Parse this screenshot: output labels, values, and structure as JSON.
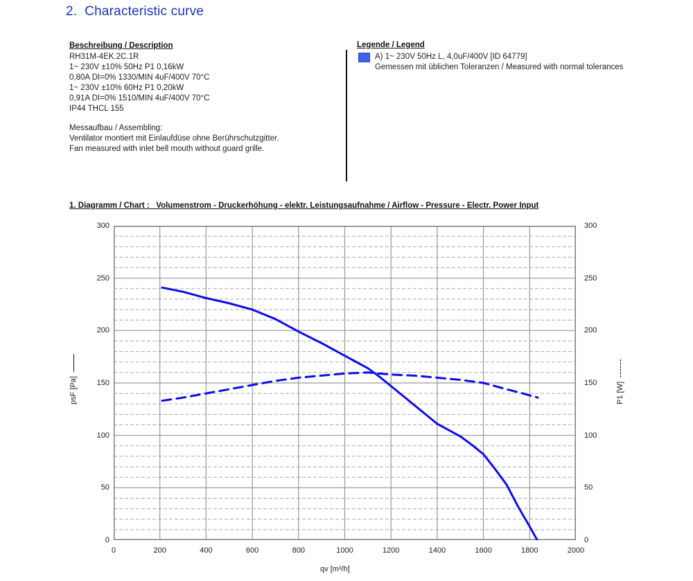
{
  "page": {
    "title": "2.  Characteristic curve",
    "title_color": "#1a35ae"
  },
  "description": {
    "header": "Beschreibung / Description",
    "lines": [
      "RH31M-4EK.2C.1R",
      "1~ 230V ±10% 50Hz P1 0,16kW",
      "0,80A DI=0% 1330/MIN 4uF/400V 70°C",
      "1~ 230V ±10% 60Hz P1 0,20kW",
      "0,91A DI=0% 1510/MIN 4uF/400V 70°C",
      "IP44 THCL 155"
    ],
    "assembling_lines": [
      "Messaufbau / Assembling:",
      "Ventilator montiert mit Einlaufdüse ohne Berührschutzgitter.",
      "Fan measured with inlet bell mouth without guard grille."
    ]
  },
  "legend": {
    "header": "Legende / Legend",
    "swatch_color": "#3e63e6",
    "item": "A) 1~ 230V 50Hz L, 4,0uF/400V [ID 64779]",
    "note": "Gemessen mit üblichen Toleranzen / Measured with normal tolerances"
  },
  "chart_header": "1. Diagramm / Chart :   Volumenstrom - Druckerhöhung - elektr. Leistungsaufnahme / Airflow - Pressure - Electr. Power Input",
  "chart_data": {
    "type": "line",
    "xlabel": "qv [m³/h]",
    "ylabel_left": "psF [Pa]",
    "ylabel_right": "P1 [W]",
    "xlim": [
      0,
      2000
    ],
    "ylim_left": [
      0,
      300
    ],
    "ylim_right": [
      0,
      300
    ],
    "x_ticks": [
      0,
      200,
      400,
      600,
      800,
      1000,
      1200,
      1400,
      1600,
      1800,
      2000
    ],
    "y_ticks": [
      0,
      50,
      100,
      150,
      200,
      250,
      300
    ],
    "y_major_step": 50,
    "y_minor_step": 10,
    "grid": {
      "border_color": "#7d7d7d",
      "major_color": "#979797",
      "minor_color": "#a8a8a8",
      "minor_style": "dashed"
    },
    "legend_position": "none",
    "series": [
      {
        "name": "psF pressure rise vs airflow (A, 50Hz)",
        "axis": "left",
        "style": "solid",
        "color": "#0d0ce6",
        "points": [
          [
            210,
            241
          ],
          [
            300,
            237
          ],
          [
            400,
            231
          ],
          [
            500,
            226
          ],
          [
            600,
            220
          ],
          [
            700,
            211
          ],
          [
            800,
            199
          ],
          [
            900,
            188
          ],
          [
            1000,
            176
          ],
          [
            1100,
            164
          ],
          [
            1150,
            156
          ],
          [
            1200,
            147
          ],
          [
            1300,
            129
          ],
          [
            1400,
            111
          ],
          [
            1450,
            105
          ],
          [
            1500,
            99
          ],
          [
            1550,
            91
          ],
          [
            1600,
            82
          ],
          [
            1650,
            68
          ],
          [
            1700,
            53
          ],
          [
            1750,
            32
          ],
          [
            1800,
            13
          ],
          [
            1833,
            0
          ]
        ]
      },
      {
        "name": "P1 electric power input vs airflow (A, 50Hz)",
        "axis": "right",
        "style": "dashed",
        "color": "#0d0ce6",
        "points": [
          [
            210,
            133
          ],
          [
            300,
            136
          ],
          [
            400,
            140
          ],
          [
            500,
            144
          ],
          [
            600,
            148
          ],
          [
            700,
            152
          ],
          [
            800,
            155
          ],
          [
            900,
            157
          ],
          [
            1000,
            159
          ],
          [
            1100,
            160
          ],
          [
            1200,
            158
          ],
          [
            1300,
            157
          ],
          [
            1400,
            155
          ],
          [
            1500,
            153
          ],
          [
            1600,
            150
          ],
          [
            1700,
            144
          ],
          [
            1770,
            140
          ],
          [
            1835,
            136
          ]
        ]
      }
    ]
  }
}
